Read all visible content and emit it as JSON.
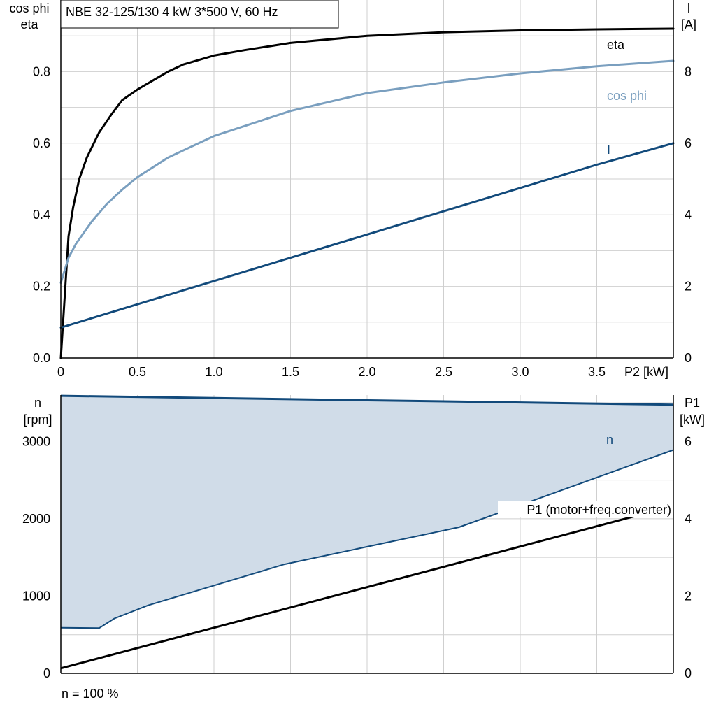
{
  "colors": {
    "eta": "#000000",
    "cos_phi": "#7a9fbf",
    "current": "#124a7b",
    "speed": "#124a7b",
    "speed_area": "#d0dce8",
    "p1": "#000000",
    "grid": "#cfcfcf"
  },
  "chart_data": [
    {
      "type": "line",
      "title": "NBE 32-125/130   4 kW   3*500 V, 60 Hz",
      "xlabel": "P2 [kW]",
      "ylabel_left": [
        "cos phi",
        "eta"
      ],
      "ylabel_right": [
        "I",
        "[A]"
      ],
      "xlim": [
        0,
        4
      ],
      "xticks": [
        0,
        0.5,
        1.0,
        1.5,
        2.0,
        2.5,
        3.0,
        3.5
      ],
      "xtick_labels": [
        "0",
        "0.5",
        "1.0",
        "1.5",
        "2.0",
        "2.5",
        "3.0",
        "3.5"
      ],
      "ylim_left": [
        0,
        1.0
      ],
      "yticks_left": [
        0.0,
        0.2,
        0.4,
        0.6,
        0.8
      ],
      "ytick_labels_left": [
        "0.0",
        "0.2",
        "0.4",
        "0.6",
        "0.8"
      ],
      "ylim_right": [
        0,
        10
      ],
      "yticks_right": [
        0,
        2,
        4,
        6,
        8
      ],
      "ytick_labels_right": [
        "0",
        "2",
        "4",
        "6",
        "8"
      ],
      "grid": true,
      "series": [
        {
          "name": "eta",
          "axis": "left",
          "color": "#000000",
          "x": [
            0,
            0.05,
            0.08,
            0.12,
            0.17,
            0.25,
            0.33,
            0.4,
            0.5,
            0.6,
            0.7,
            0.8,
            1.0,
            1.2,
            1.5,
            2.0,
            2.5,
            3.0,
            3.5,
            4.0
          ],
          "y": [
            0,
            0.34,
            0.42,
            0.5,
            0.56,
            0.63,
            0.68,
            0.72,
            0.75,
            0.775,
            0.8,
            0.82,
            0.845,
            0.86,
            0.88,
            0.9,
            0.91,
            0.915,
            0.918,
            0.92
          ]
        },
        {
          "name": "cos phi",
          "axis": "left",
          "color": "#7a9fbf",
          "x": [
            0,
            0.05,
            0.1,
            0.2,
            0.3,
            0.4,
            0.5,
            0.7,
            1.0,
            1.5,
            2.0,
            2.5,
            3.0,
            3.5,
            4.0
          ],
          "y": [
            0.21,
            0.28,
            0.32,
            0.38,
            0.43,
            0.47,
            0.505,
            0.56,
            0.62,
            0.69,
            0.74,
            0.77,
            0.795,
            0.815,
            0.83
          ]
        },
        {
          "name": "I",
          "axis": "right",
          "color": "#124a7b",
          "x": [
            0,
            0.5,
            1.0,
            1.5,
            2.0,
            2.5,
            3.0,
            3.5,
            4.0
          ],
          "y": [
            0.85,
            1.5,
            2.15,
            2.8,
            3.45,
            4.1,
            4.75,
            5.4,
            6.0
          ]
        }
      ]
    },
    {
      "type": "area",
      "xlim": [
        0,
        4
      ],
      "xticks": [
        0,
        0.5,
        1.0,
        1.5,
        2.0,
        2.5,
        3.0,
        3.5
      ],
      "ylabel_left": [
        "n",
        "[rpm]"
      ],
      "ylabel_right": [
        "P1",
        "[kW]"
      ],
      "ylim_left": [
        0,
        3600
      ],
      "yticks_left": [
        0,
        1000,
        2000,
        3000
      ],
      "ytick_labels_left": [
        "0",
        "1000",
        "2000",
        "3000"
      ],
      "ylim_right": [
        0,
        7.2
      ],
      "yticks_right": [
        0,
        2,
        4,
        6
      ],
      "ytick_labels_right": [
        "0",
        "2",
        "4",
        "6"
      ],
      "grid": true,
      "annotation": "n = 100 %",
      "series": [
        {
          "name": "n",
          "axis": "left",
          "color": "#124a7b",
          "role": "max speed",
          "x": [
            0,
            4.0
          ],
          "y": [
            3590,
            3475
          ]
        },
        {
          "axis": "left",
          "color": "#124a7b",
          "role": "min speed",
          "x": [
            0,
            0.25,
            0.35,
            0.57,
            1.46,
            2.6,
            4.0
          ],
          "y": [
            590,
            585,
            710,
            880,
            1410,
            1890,
            2890
          ]
        },
        {
          "name": "P1 (motor+freq.converter)",
          "axis": "right",
          "color": "#000000",
          "x": [
            0,
            4.0
          ],
          "y": [
            0.13,
            4.33
          ]
        }
      ]
    }
  ]
}
